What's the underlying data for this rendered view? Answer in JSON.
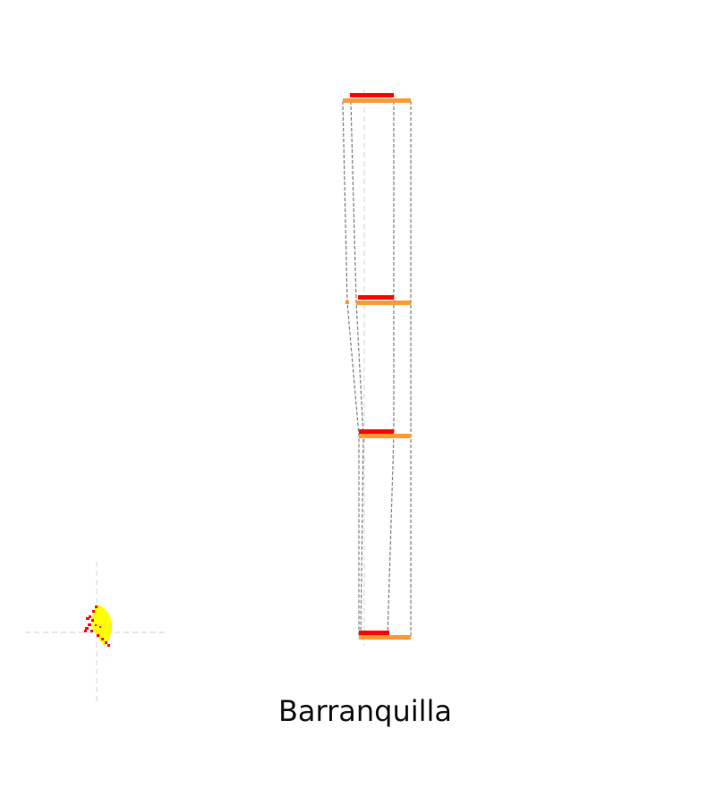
{
  "diagram": {
    "city_name": "Barranquilla",
    "colors": {
      "level_bar_upper": "#ff0000",
      "level_bar_lower": "#ff9933",
      "guide_line": "#808080",
      "axis_line": "#d3d3d3",
      "blob_fill": "#ffff00",
      "blob_edge": "#ff0000"
    },
    "level_count": 4
  }
}
